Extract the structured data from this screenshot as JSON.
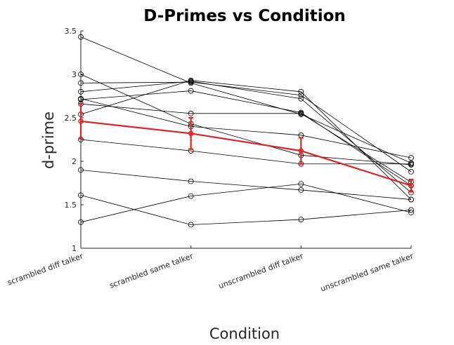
{
  "chart_data": {
    "type": "line",
    "title": "D-Primes vs Condition",
    "xlabel": "Condition",
    "ylabel": "d-prime",
    "categories": [
      "scrambled diff talker",
      "scrambled same talker",
      "unscrambled diff talker",
      "unscrambled same talker"
    ],
    "ylim": [
      1,
      3.5
    ],
    "yticks": [
      1,
      1.5,
      2,
      2.5,
      3,
      3.5
    ],
    "ytick_labels": [
      "1",
      "1.5",
      "2",
      "2.5",
      "3",
      "3.5"
    ],
    "grid": false,
    "marker": "circle",
    "series": [
      {
        "values": [
          3.43,
          2.9,
          2.54,
          1.98
        ],
        "color": "#000000"
      },
      {
        "values": [
          3.0,
          2.43,
          2.07,
          1.96
        ],
        "color": "#000000"
      },
      {
        "values": [
          2.9,
          2.91,
          2.76,
          1.88
        ],
        "color": "#000000"
      },
      {
        "values": [
          2.8,
          2.92,
          2.72,
          1.64
        ],
        "color": "#000000"
      },
      {
        "values": [
          2.71,
          2.81,
          2.56,
          1.72
        ],
        "color": "#000000"
      },
      {
        "values": [
          2.54,
          2.93,
          2.8,
          1.56
        ],
        "color": "#000000"
      },
      {
        "values": [
          2.66,
          2.55,
          2.55,
          1.76
        ],
        "color": "#000000"
      },
      {
        "values": [
          2.25,
          2.12,
          1.97,
          1.97
        ],
        "color": "#000000"
      },
      {
        "values": [
          1.9,
          1.77,
          1.67,
          1.56
        ],
        "color": "#000000"
      },
      {
        "values": [
          1.61,
          1.27,
          1.33,
          1.44
        ],
        "color": "#000000"
      },
      {
        "values": [
          1.3,
          1.6,
          1.74,
          1.41
        ],
        "color": "#000000"
      },
      {
        "values": [
          2.72,
          2.4,
          2.3,
          2.04
        ],
        "color": "#000000"
      }
    ],
    "mean_series": {
      "values": [
        2.46,
        2.32,
        2.12,
        1.72
      ],
      "error": [
        0.2,
        0.18,
        0.15,
        0.07
      ],
      "color": "#d62728"
    }
  }
}
